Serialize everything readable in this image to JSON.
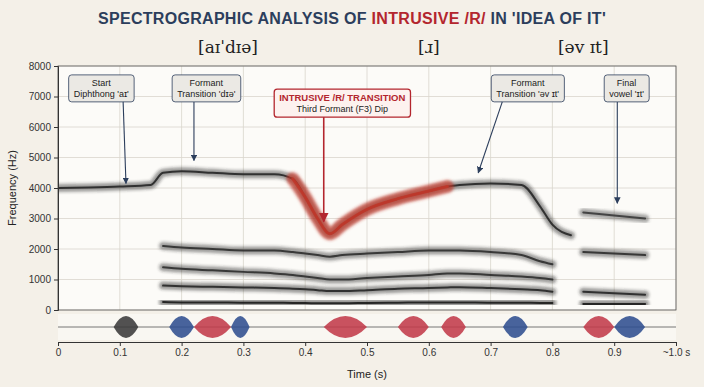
{
  "chart_data": {
    "type": "line",
    "title_parts": [
      {
        "text": "SPECTROGRAPHIC ANALYSIS OF ",
        "color": "#2c3e5c"
      },
      {
        "text": "INTRUSIVE /R/",
        "color": "#b3262e"
      },
      {
        "text": " IN 'IDEA OF IT'",
        "color": "#2c3e5c"
      }
    ],
    "segment_labels": [
      {
        "text": "[aɪˈdɪə]",
        "x": 0.275
      },
      {
        "text": "[ɹ]",
        "x": 0.6
      },
      {
        "text": "[əv ɪt]",
        "x": 0.85
      }
    ],
    "x_label": "Time (s)",
    "y_label": "Frequency (Hz)",
    "xlim": [
      0,
      1.0
    ],
    "xticks": [
      0,
      0.1,
      0.2,
      0.3,
      0.4,
      0.5,
      0.6,
      0.7,
      0.8,
      0.9,
      {
        "value": 1.0,
        "label": "~1.0 s"
      }
    ],
    "ylim": [
      0,
      8000
    ],
    "yticks": [
      0,
      1000,
      2000,
      3000,
      4000,
      5000,
      6000,
      7000,
      8000
    ],
    "grid": true,
    "x": [
      0,
      0.05,
      0.1,
      0.15,
      0.17,
      0.2,
      0.25,
      0.3,
      0.35,
      0.38,
      0.4,
      0.42,
      0.44,
      0.46,
      0.5,
      0.55,
      0.6,
      0.63,
      0.65,
      0.7,
      0.75,
      0.78,
      0.8,
      0.83,
      0.85,
      0.9,
      0.95
    ],
    "series": [
      {
        "color": "#262626",
        "line_style": "solid",
        "values": [
          4000,
          4020,
          4050,
          4100,
          4500,
          4550,
          4500,
          4450,
          4450,
          4300,
          3700,
          3000,
          2500,
          2800,
          3300,
          3650,
          3900,
          4050,
          4100,
          4150,
          4100,
          3400,
          2800,
          2450,
          null,
          null,
          null
        ]
      },
      {
        "color": "#2e2e2e",
        "line_style": "solid",
        "values": [
          null,
          null,
          null,
          null,
          2100,
          2050,
          2000,
          1950,
          1950,
          1900,
          1850,
          1800,
          1750,
          1800,
          1850,
          1900,
          1950,
          1950,
          1950,
          1900,
          1800,
          1600,
          1500,
          null,
          1900,
          1850,
          1800
        ]
      },
      {
        "color": "#2e2e2e",
        "line_style": "solid",
        "values": [
          null,
          null,
          null,
          null,
          1400,
          1350,
          1300,
          1250,
          1200,
          1150,
          1100,
          1050,
          1000,
          1000,
          1050,
          1100,
          1150,
          1200,
          1200,
          1150,
          1100,
          1050,
          1000,
          null,
          null,
          null,
          null
        ]
      },
      {
        "color": "#262626",
        "line_style": "solid",
        "values": [
          null,
          null,
          null,
          null,
          800,
          780,
          760,
          740,
          720,
          700,
          680,
          650,
          620,
          620,
          650,
          700,
          720,
          740,
          750,
          720,
          680,
          650,
          600,
          null,
          600,
          550,
          500
        ]
      },
      {
        "color": "#1a1a1a",
        "line_style": "solid",
        "values": [
          null,
          null,
          null,
          null,
          260,
          250,
          250,
          240,
          240,
          230,
          230,
          220,
          220,
          220,
          230,
          240,
          250,
          250,
          250,
          240,
          240,
          230,
          230,
          null,
          200,
          200,
          200
        ]
      },
      {
        "color": "#3a3a3a",
        "line_style": "solid",
        "values": [
          null,
          null,
          null,
          null,
          null,
          null,
          null,
          null,
          null,
          null,
          null,
          null,
          null,
          null,
          null,
          null,
          null,
          null,
          null,
          null,
          null,
          null,
          null,
          null,
          3200,
          3100,
          3000
        ]
      },
      {
        "color": "#c0392b",
        "line_style": "bold",
        "values": [
          null,
          null,
          null,
          null,
          null,
          null,
          null,
          null,
          null,
          4300,
          3700,
          3000,
          2500,
          2800,
          3300,
          3650,
          3900,
          4050,
          null,
          null,
          null,
          null,
          null,
          null,
          null,
          null,
          null
        ]
      }
    ],
    "waveform": [
      {
        "start": 0.09,
        "end": 0.13,
        "color": "#3a3a3a"
      },
      {
        "start": 0.18,
        "end": 0.22,
        "color": "#2f4f8f"
      },
      {
        "start": 0.22,
        "end": 0.28,
        "color": "#c23b4a"
      },
      {
        "start": 0.28,
        "end": 0.31,
        "color": "#2f4f8f"
      },
      {
        "start": 0.43,
        "end": 0.5,
        "color": "#c23b4a"
      },
      {
        "start": 0.55,
        "end": 0.6,
        "color": "#c23b4a"
      },
      {
        "start": 0.62,
        "end": 0.66,
        "color": "#c23b4a"
      },
      {
        "start": 0.72,
        "end": 0.76,
        "color": "#2f4f8f"
      },
      {
        "start": 0.85,
        "end": 0.9,
        "color": "#c23b4a"
      },
      {
        "start": 0.9,
        "end": 0.95,
        "color": "#2f4f8f"
      }
    ],
    "annotations": [
      {
        "text": [
          "Start",
          "Diphthong 'aɪ'"
        ],
        "x": 0.07,
        "y": 7250,
        "arrow_x": 0.11,
        "arrow_y": 4150
      },
      {
        "text": [
          "Formant",
          "Transition 'dɪə'"
        ],
        "x": 0.24,
        "y": 7250,
        "arrow_x": 0.22,
        "arrow_y": 4900
      },
      {
        "title": "INTRUSIVE /R/ TRANSITION",
        "text": [
          "Third Formant (F3) Dip"
        ],
        "x": 0.46,
        "y": 6750,
        "arrow_x": 0.43,
        "arrow_y": 2900,
        "color": "#b3262e"
      },
      {
        "text": [
          "Formant",
          "Transition 'əv ɪt'"
        ],
        "x": 0.76,
        "y": 7250,
        "arrow_x": 0.68,
        "arrow_y": 4500
      },
      {
        "text": [
          "Final",
          "vowel 'ɪt'"
        ],
        "x": 0.92,
        "y": 7250,
        "arrow_x": 0.905,
        "arrow_y": 3500
      }
    ]
  }
}
